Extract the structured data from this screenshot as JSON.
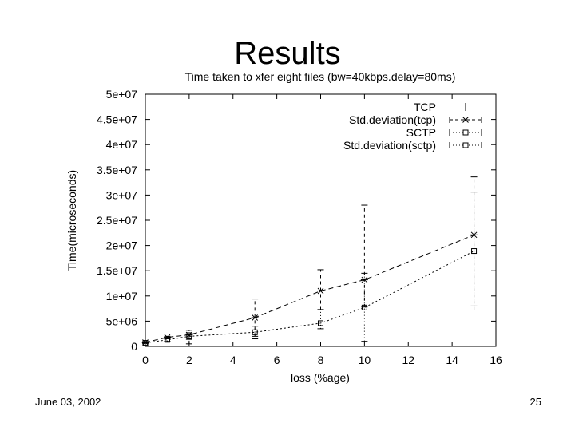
{
  "slide": {
    "title": "Results",
    "date": "June 03, 2002",
    "page_number": "25"
  },
  "chart_data": {
    "type": "line",
    "title": "Time taken to xfer eight files (bw=40kbps.delay=80ms)",
    "xlabel": "loss (%age)",
    "ylabel": "Time(microseconds)",
    "xlim": [
      0,
      16
    ],
    "ylim": [
      0,
      50000000
    ],
    "x_ticks": [
      0,
      2,
      4,
      6,
      8,
      10,
      12,
      14,
      16
    ],
    "x_tick_labels": [
      "0",
      "2",
      "4",
      "6",
      "8",
      "10",
      "12",
      "14",
      "16"
    ],
    "y_ticks": [
      0,
      5000000,
      10000000,
      15000000,
      20000000,
      25000000,
      30000000,
      35000000,
      40000000,
      45000000,
      50000000
    ],
    "y_tick_labels": [
      "0",
      "5e+06",
      "1e+07",
      "1.5e+07",
      "2e+07",
      "2.5e+07",
      "3e+07",
      "3.5e+07",
      "4e+07",
      "4.5e+07",
      "5e+07"
    ],
    "grid": false,
    "legend_position": "top-right",
    "legend": [
      "TCP",
      "Std.deviation(tcp)",
      "SCTP",
      "Std.deviation(sctp)"
    ],
    "series": [
      {
        "name": "TCP",
        "x": [
          0,
          1,
          2,
          5,
          8,
          10,
          15
        ],
        "y": [
          800000,
          1800000,
          2300000,
          5700000,
          11000000,
          13200000,
          22100000
        ],
        "err_low": [
          700000,
          1500000,
          500000,
          2000000,
          7200000,
          7800000,
          7200000
        ],
        "err_high": [
          900000,
          2000000,
          3200000,
          9400000,
          15200000,
          28000000,
          33600000
        ]
      },
      {
        "name": "SCTP",
        "x": [
          0,
          1,
          2,
          5,
          8,
          10,
          15
        ],
        "y": [
          700000,
          1300000,
          2000000,
          2800000,
          4600000,
          7700000,
          18900000
        ],
        "err_low": [
          600000,
          1000000,
          1400000,
          1500000,
          3500000,
          1000000,
          8000000
        ],
        "err_high": [
          800000,
          1700000,
          2700000,
          4000000,
          7300000,
          14500000,
          30600000
        ]
      }
    ]
  }
}
